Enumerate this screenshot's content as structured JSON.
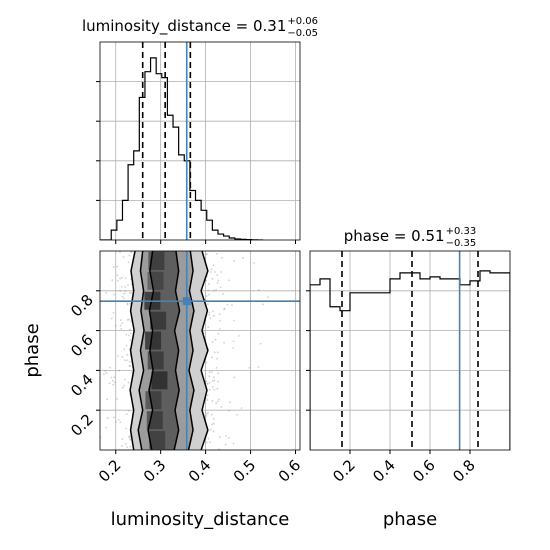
{
  "chart_data": {
    "type": "corner",
    "parameters": [
      "luminosity_distance",
      "phase"
    ],
    "truths": {
      "luminosity_distance": 0.358,
      "phase": 0.748
    },
    "panels": [
      {
        "id": "hist-luminosity_distance",
        "type": "histogram-step",
        "title": {
          "prefix": "luminosity_distance = 0.31",
          "sup": "+0.06",
          "sub": "−0.05"
        },
        "xlim": [
          0.165,
          0.61
        ],
        "ylim": [
          0,
          1.0
        ],
        "bin_edges": [
          0.165,
          0.1775,
          0.19,
          0.2025,
          0.215,
          0.2275,
          0.24,
          0.2525,
          0.265,
          0.2775,
          0.29,
          0.3025,
          0.315,
          0.3275,
          0.34,
          0.3525,
          0.365,
          0.3775,
          0.39,
          0.4025,
          0.415,
          0.4275,
          0.44,
          0.4525,
          0.465,
          0.4775,
          0.49,
          0.5025,
          0.515,
          0.5275
        ],
        "counts": [
          0.0,
          0.0,
          0.05,
          0.1,
          0.2,
          0.38,
          0.45,
          0.72,
          0.85,
          0.92,
          0.84,
          0.82,
          0.63,
          0.57,
          0.43,
          0.4,
          0.25,
          0.2,
          0.15,
          0.1,
          0.05,
          0.03,
          0.02,
          0.01,
          0.005,
          0.003,
          0.002,
          0.001,
          0.0
        ],
        "quantiles": [
          0.26,
          0.31,
          0.366
        ],
        "xticks": [
          0.2,
          0.3,
          0.4,
          0.5,
          0.6
        ]
      },
      {
        "id": "hist-phase",
        "type": "histogram-step",
        "title": {
          "prefix": "phase = 0.51",
          "sup": "+0.33",
          "sub": "−0.35"
        },
        "xlim": [
          0.0,
          1.0
        ],
        "ylim": [
          0,
          1.0
        ],
        "bin_edges": [
          0.0,
          0.05,
          0.1,
          0.15,
          0.2,
          0.3,
          0.4,
          0.45,
          0.5,
          0.55,
          0.6,
          0.65,
          0.7,
          0.75,
          0.8,
          0.85,
          0.9,
          1.0
        ],
        "counts": [
          0.83,
          0.86,
          0.72,
          0.7,
          0.79,
          0.79,
          0.86,
          0.89,
          0.89,
          0.86,
          0.87,
          0.86,
          0.86,
          0.83,
          0.85,
          0.9,
          0.89
        ],
        "quantiles": [
          0.16,
          0.51,
          0.84
        ],
        "xticks": [
          0.2,
          0.4,
          0.6,
          0.8
        ]
      },
      {
        "id": "joint-luminosity_distance-phase",
        "type": "2d-density",
        "xlim": [
          0.165,
          0.61
        ],
        "ylim": [
          0.0,
          1.0
        ],
        "xticks": [
          0.2,
          0.3,
          0.4,
          0.5,
          0.6
        ],
        "yticks": [
          0.2,
          0.4,
          0.6,
          0.8
        ],
        "contours": [
          {
            "level": "outer",
            "left": [
              [
                0.24,
                0.0
              ],
              [
                0.233,
                0.1
              ],
              [
                0.24,
                0.2
              ],
              [
                0.232,
                0.3
              ],
              [
                0.24,
                0.4
              ],
              [
                0.233,
                0.5
              ],
              [
                0.241,
                0.6
              ],
              [
                0.233,
                0.7
              ],
              [
                0.24,
                0.8
              ],
              [
                0.234,
                0.9
              ],
              [
                0.243,
                1.0
              ]
            ],
            "right": [
              [
                0.39,
                0.0
              ],
              [
                0.405,
                0.1
              ],
              [
                0.392,
                0.2
              ],
              [
                0.403,
                0.3
              ],
              [
                0.39,
                0.4
              ],
              [
                0.405,
                0.5
              ],
              [
                0.392,
                0.6
              ],
              [
                0.404,
                0.7
              ],
              [
                0.39,
                0.8
              ],
              [
                0.405,
                0.9
              ],
              [
                0.392,
                1.0
              ]
            ]
          },
          {
            "level": "middle",
            "left": [
              [
                0.258,
                0.0
              ],
              [
                0.25,
                0.1
              ],
              [
                0.26,
                0.2
              ],
              [
                0.252,
                0.3
              ],
              [
                0.262,
                0.4
              ],
              [
                0.255,
                0.5
              ],
              [
                0.263,
                0.6
              ],
              [
                0.256,
                0.7
              ],
              [
                0.262,
                0.8
              ],
              [
                0.255,
                0.9
              ],
              [
                0.26,
                1.0
              ]
            ],
            "right": [
              [
                0.362,
                0.0
              ],
              [
                0.372,
                0.1
              ],
              [
                0.365,
                0.2
              ],
              [
                0.374,
                0.3
              ],
              [
                0.363,
                0.4
              ],
              [
                0.372,
                0.5
              ],
              [
                0.365,
                0.6
              ],
              [
                0.374,
                0.7
              ],
              [
                0.364,
                0.8
              ],
              [
                0.372,
                0.9
              ],
              [
                0.366,
                1.0
              ]
            ]
          },
          {
            "level": "inner",
            "left": [
              [
                0.28,
                0.0
              ],
              [
                0.272,
                0.1
              ],
              [
                0.282,
                0.2
              ],
              [
                0.274,
                0.3
              ],
              [
                0.283,
                0.4
              ],
              [
                0.276,
                0.5
              ],
              [
                0.282,
                0.6
              ],
              [
                0.275,
                0.7
              ],
              [
                0.284,
                0.8
              ],
              [
                0.276,
                0.9
              ],
              [
                0.282,
                1.0
              ]
            ],
            "right": [
              [
                0.33,
                0.0
              ],
              [
                0.34,
                0.1
              ],
              [
                0.332,
                0.2
              ],
              [
                0.341,
                0.3
              ],
              [
                0.333,
                0.4
              ],
              [
                0.34,
                0.5
              ],
              [
                0.331,
                0.6
              ],
              [
                0.342,
                0.7
              ],
              [
                0.333,
                0.8
              ],
              [
                0.34,
                0.9
              ],
              [
                0.334,
                1.0
              ]
            ]
          }
        ]
      }
    ],
    "xlabels": [
      "luminosity_distance",
      "phase"
    ],
    "ylabels": [
      "",
      "phase"
    ],
    "grid": true,
    "colors": {
      "hist": "#000000",
      "truth": "#4682b4",
      "scatter": "#808080"
    }
  }
}
